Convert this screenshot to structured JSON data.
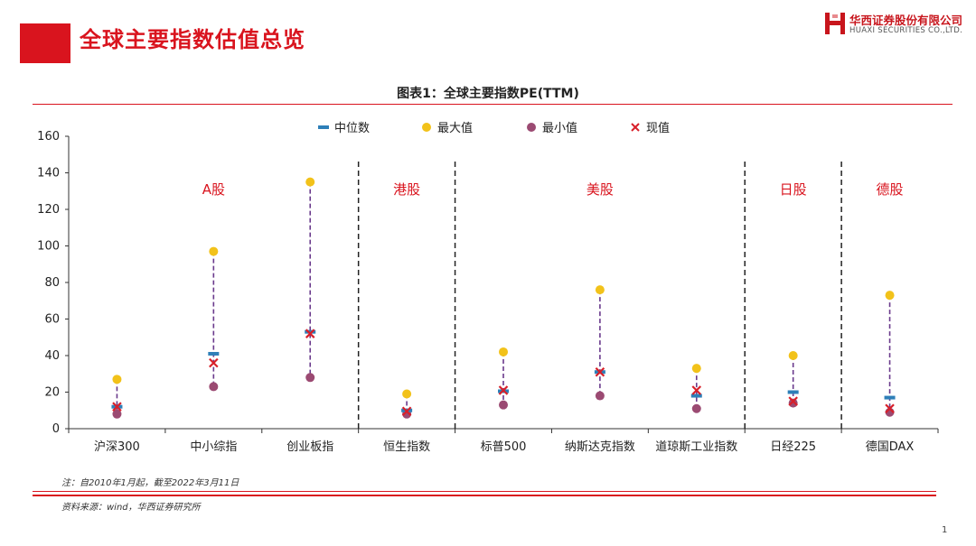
{
  "page": {
    "title": "全球主要指数估值总览",
    "page_number": "1"
  },
  "logo": {
    "cn": "华西证券股份有限公司",
    "en": "HUAXI SECURITIES CO.,LTD."
  },
  "chart_title": "图表1：全球主要指数PE(TTM)",
  "note": "注：自2010年1月起，截至2022年3月11日",
  "source": "资料来源：wind，华西证券研究所",
  "colors": {
    "brand_red": "#d9141e",
    "median": "#2e7fb8",
    "max": "#f2c21a",
    "min": "#9b4a72",
    "current": "#d8202a",
    "range_line": "#6a3a8c",
    "group_label": "#d9141e"
  },
  "chart_data": {
    "type": "scatter",
    "title": "图表1：全球主要指数PE(TTM)",
    "xlabel": "",
    "ylabel": "",
    "ylim": [
      0,
      160
    ],
    "yticks": [
      0,
      20,
      40,
      60,
      80,
      100,
      120,
      140,
      160
    ],
    "grid": false,
    "legend_position": "top",
    "categories": [
      "沪深300",
      "中小综指",
      "创业板指",
      "恒生指数",
      "标普500",
      "纳斯达克指数",
      "道琼斯工业指数",
      "日经225",
      "德国DAX"
    ],
    "series": [
      {
        "name": "中位数",
        "marker": "dash",
        "values": [
          12,
          41,
          53,
          10,
          20.5,
          31,
          18,
          20,
          17
        ]
      },
      {
        "name": "最大值",
        "marker": "circle",
        "values": [
          27,
          97,
          135,
          19,
          42,
          76,
          33,
          40,
          73
        ]
      },
      {
        "name": "最小值",
        "marker": "circle",
        "values": [
          8,
          23,
          28,
          8,
          13,
          18,
          11,
          14,
          9
        ]
      },
      {
        "name": "现值",
        "marker": "x",
        "values": [
          12,
          36,
          52,
          9.5,
          21,
          31,
          21,
          15,
          11
        ]
      }
    ],
    "groups": [
      {
        "label": "A股",
        "start": 0,
        "end": 2
      },
      {
        "label": "港股",
        "start": 3,
        "end": 3
      },
      {
        "label": "美股",
        "start": 4,
        "end": 6
      },
      {
        "label": "日股",
        "start": 7,
        "end": 7
      },
      {
        "label": "德股",
        "start": 8,
        "end": 8
      }
    ]
  }
}
